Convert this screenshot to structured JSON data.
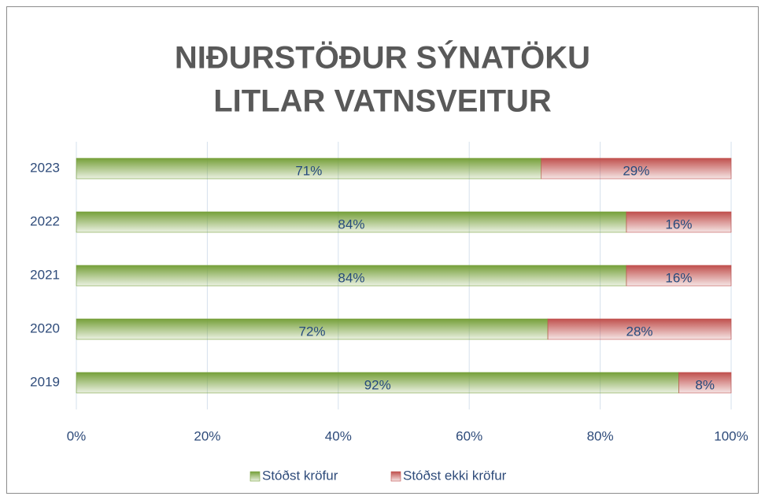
{
  "chart_data": {
    "type": "stacked_barh",
    "title": [
      "NIÐURSTÖÐUR SÝNATÖKU",
      "LITLAR VATNSVEITUR"
    ],
    "categories": [
      "2019",
      "2020",
      "2021",
      "2022",
      "2023"
    ],
    "series": [
      {
        "name": "Stóðst kröfur",
        "color": "#76a03a",
        "values": [
          92,
          72,
          84,
          84,
          71
        ],
        "value_labels": [
          "92%",
          "72%",
          "84%",
          "84%",
          "71%"
        ]
      },
      {
        "name": "Stóðst ekki kröfur",
        "color": "#c0504d",
        "values": [
          8,
          28,
          16,
          16,
          29
        ],
        "value_labels": [
          "8%",
          "28%",
          "16%",
          "16%",
          "29%"
        ]
      }
    ],
    "xlim": [
      0,
      100
    ],
    "xticks": [
      {
        "value": 0,
        "label": "0%"
      },
      {
        "value": 20,
        "label": "20%"
      },
      {
        "value": 40,
        "label": "40%"
      },
      {
        "value": 60,
        "label": "60%"
      },
      {
        "value": 80,
        "label": "80%"
      },
      {
        "value": 100,
        "label": "100%"
      }
    ],
    "grid": true,
    "legend": "bottom"
  }
}
